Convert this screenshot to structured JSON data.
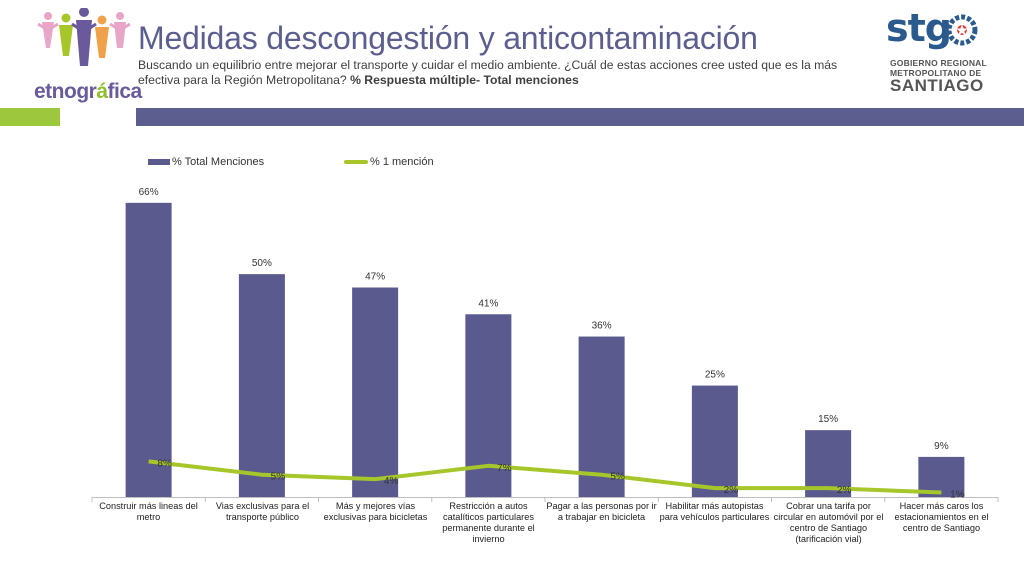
{
  "header": {
    "title": "Medidas descongestión y anticontaminación",
    "subtitle_main": "Buscando un equilibrio entre mejorar el transporte y cuidar el medio ambiente. ¿Cuál de estas acciones cree usted que es la más efectiva para la Región Metropolitana?",
    "subtitle_bold": "% Respuesta múltiple- Total menciones"
  },
  "logo_left": {
    "word_a": "etnogr",
    "word_b": "á",
    "word_c": "fica"
  },
  "logo_right": {
    "stg": "stg",
    "line1": "GOBIERNO REGIONAL",
    "line2": "METROPOLITANO DE",
    "line3": "SANTIAGO"
  },
  "colors": {
    "bar": "#5a5a8f",
    "line": "#a6c62a",
    "accent_green": "#9dc73c",
    "accent_purple": "#5c5e8f"
  },
  "chart_data": {
    "type": "bar",
    "categories": [
      "Construir más lineas del metro",
      "Vias exclusivas para el transporte público",
      "Más y mejores vías exclusivas para bicicletas",
      "Restricción a autos catalíticos particulares permanente durante el invierno",
      "Pagar a las personas por ir a trabajar en bicicleta",
      "Habilitar más autopistas para vehículos particulares",
      "Cobrar una tarifa por circular en automóvil por el centro de Santiago (tarificación vial)",
      "Hacer más caros los estacionamientos en el centro de Santiago"
    ],
    "series": [
      {
        "name": "% Total Menciones",
        "type": "bar",
        "values": [
          66,
          50,
          47,
          41,
          36,
          25,
          15,
          9
        ],
        "labels": [
          "66%",
          "50%",
          "47%",
          "41%",
          "36%",
          "25%",
          "15%",
          "9%"
        ]
      },
      {
        "name": "% 1 mención",
        "type": "line",
        "values": [
          8,
          5,
          4,
          7,
          5,
          2,
          2,
          1
        ],
        "labels": [
          "8%",
          "5%",
          "4%",
          "7%",
          "5%",
          "2%",
          "2%",
          "1%"
        ]
      }
    ],
    "ylim": [
      0,
      70
    ],
    "legend_position": "top-left",
    "grid": false
  }
}
